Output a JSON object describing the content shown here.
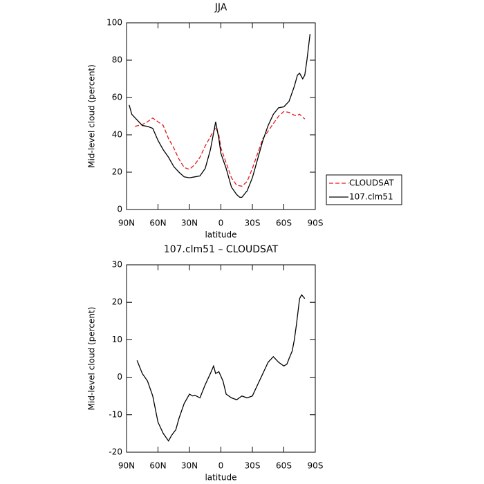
{
  "chart_data": [
    {
      "type": "line",
      "title": "JJA",
      "xlabel": "latitude",
      "ylabel": "Mid-level cloud (percent)",
      "xlim": [
        90,
        -90
      ],
      "xticks": [
        {
          "value": 90,
          "label": "90N"
        },
        {
          "value": 60,
          "label": "60N"
        },
        {
          "value": 30,
          "label": "30N"
        },
        0,
        {
          "value": -30,
          "label": "30S"
        },
        {
          "value": -60,
          "label": "60S"
        },
        {
          "value": -90,
          "label": "90S"
        }
      ],
      "ylim": [
        0,
        100
      ],
      "yticks": [
        0,
        20,
        40,
        60,
        80,
        100
      ],
      "legend": "right",
      "series": [
        {
          "name": "CLOUDSAT",
          "color": "#e41a1c",
          "linestyle": "dashed",
          "x": [
            82,
            75,
            70,
            65,
            60,
            55,
            50,
            45,
            40,
            35,
            30,
            25,
            20,
            15,
            10,
            5,
            2,
            0,
            -5,
            -10,
            -15,
            -20,
            -25,
            -30,
            -35,
            -40,
            -45,
            -50,
            -55,
            -60,
            -65,
            -70,
            -73,
            -75,
            -80
          ],
          "values": [
            44.5,
            45.5,
            47,
            49,
            47,
            45,
            38,
            33,
            27,
            22.5,
            21.5,
            24,
            28,
            34,
            39,
            44,
            40,
            33,
            25,
            17,
            13,
            12.5,
            15,
            22,
            30,
            38,
            42,
            46,
            50,
            52.5,
            52,
            50.5,
            50.5,
            51,
            48.5
          ]
        },
        {
          "name": "107.clm51",
          "color": "#000000",
          "linestyle": "solid",
          "x": [
            87.5,
            85,
            80,
            75,
            70,
            65,
            60,
            55,
            50,
            45,
            40,
            35,
            30,
            25,
            20,
            15,
            10,
            7,
            5,
            2,
            0,
            -5,
            -10,
            -15,
            -18,
            -20,
            -25,
            -30,
            -35,
            -40,
            -45,
            -50,
            -55,
            -60,
            -65,
            -70,
            -73,
            -75,
            -78,
            -80,
            -82,
            -85
          ],
          "values": [
            56,
            51,
            48,
            45,
            44.5,
            43.5,
            37,
            32,
            28,
            23,
            20,
            17.5,
            17,
            17.5,
            18,
            22,
            32,
            41,
            47,
            38,
            30,
            22,
            12,
            8,
            6.5,
            6.5,
            10,
            17,
            27,
            37,
            45,
            51,
            54.5,
            55,
            58,
            66,
            72,
            73,
            70,
            72,
            80,
            94
          ]
        }
      ]
    },
    {
      "type": "line",
      "title": "107.clm51 – CLOUDSAT",
      "xlabel": "latitude",
      "ylabel": "Mid-level cloud (percent)",
      "xlim": [
        90,
        -90
      ],
      "xticks": [
        {
          "value": 90,
          "label": "90N"
        },
        {
          "value": 60,
          "label": "60N"
        },
        {
          "value": 30,
          "label": "30N"
        },
        0,
        {
          "value": -30,
          "label": "30S"
        },
        {
          "value": -60,
          "label": "60S"
        },
        {
          "value": -90,
          "label": "90S"
        }
      ],
      "ylim": [
        -20,
        30
      ],
      "yticks": [
        -20,
        -10,
        0,
        10,
        20,
        30
      ],
      "series": [
        {
          "color": "#000000",
          "linestyle": "solid",
          "x": [
            80,
            75,
            70,
            65,
            60,
            55,
            50,
            47,
            43,
            40,
            35,
            30,
            27,
            25,
            20,
            15,
            10,
            7,
            5,
            2,
            -2,
            -5,
            -10,
            -15,
            -20,
            -25,
            -30,
            -35,
            -40,
            -45,
            -50,
            -55,
            -60,
            -63,
            -65,
            -68,
            -70,
            -72,
            -75,
            -77,
            -80
          ],
          "values": [
            4.5,
            1,
            -1,
            -5,
            -12,
            -15,
            -17,
            -15.5,
            -14,
            -11,
            -7,
            -4.5,
            -5,
            -4.8,
            -5.5,
            -2,
            1,
            3,
            1,
            1.5,
            -1,
            -4.5,
            -5.5,
            -6,
            -5,
            -5.5,
            -5,
            -2,
            1,
            4,
            5.5,
            4,
            3,
            3.5,
            5,
            7,
            10,
            14,
            21,
            22,
            21
          ]
        }
      ]
    }
  ]
}
